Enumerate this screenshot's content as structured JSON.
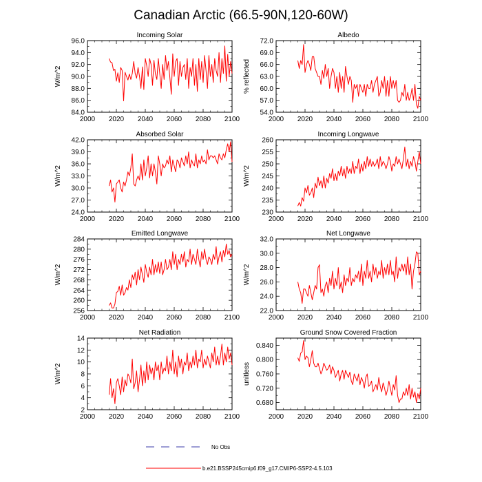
{
  "figure": {
    "title": "Canadian Arctic (66.5-90N,120-60W)"
  },
  "legend": {
    "obs_label": "No Obs",
    "obs_color": "#3a3aa8",
    "model_label": "b.e21.BSSP245cmip6.f09_g17.CMIP6-SSP2-4.5.103",
    "model_color": "#ff0000"
  },
  "chart_data": [
    {
      "type": "line",
      "title": "Incoming Solar",
      "xlabel": "",
      "ylabel": "W/m^2",
      "xlim": [
        2000,
        2100
      ],
      "xticks": [
        2000,
        2020,
        2040,
        2060,
        2080,
        2100
      ],
      "ylim": [
        84,
        96
      ],
      "yticks": [
        "84.0",
        "86.0",
        "88.0",
        "90.0",
        "92.0",
        "94.0",
        "96.0"
      ],
      "series": [
        {
          "name": "b.e21.BSSP245cmip6.f09_g17.CMIP6-SSP2-4.5.103",
          "x_start": 2015,
          "x_step": 1,
          "values": [
            93.0,
            92.4,
            92.3,
            91.0,
            91.2,
            89.2,
            90.6,
            89.0,
            91.5,
            91.0,
            85.9,
            90.7,
            90.0,
            89.4,
            90.4,
            89.5,
            90.5,
            92.5,
            90.5,
            89.7,
            91.5,
            90.0,
            88.0,
            91.6,
            87.8,
            93.0,
            91.8,
            90.0,
            93.0,
            92.0,
            88.5,
            92.7,
            90.4,
            89.5,
            93.0,
            90.5,
            88.0,
            92.0,
            89.5,
            93.5,
            91.0,
            92.5,
            89.8,
            87.0,
            93.8,
            90.0,
            92.5,
            93.0,
            88.5,
            92.5,
            90.0,
            91.5,
            92.0,
            89.5,
            93.0,
            88.0,
            91.5,
            90.0,
            93.0,
            88.5,
            92.0,
            87.5,
            93.0,
            89.5,
            92.5,
            89.0,
            93.5,
            91.0,
            88.0,
            93.5,
            90.0,
            92.0,
            89.0,
            93.0,
            91.0,
            90.0,
            94.0,
            89.0,
            93.0,
            90.5,
            95.1,
            89.2,
            93.7,
            90.0,
            92.5,
            90.5
          ]
        }
      ]
    },
    {
      "type": "line",
      "title": "Albedo",
      "xlabel": "",
      "ylabel": "% reflected",
      "xlim": [
        2000,
        2100
      ],
      "xticks": [
        2000,
        2020,
        2040,
        2060,
        2080,
        2100
      ],
      "ylim": [
        54,
        72
      ],
      "yticks": [
        "54.0",
        "57.0",
        "60.0",
        "63.0",
        "66.0",
        "69.0",
        "72.0"
      ],
      "series": [
        {
          "name": "b.e21.BSSP245cmip6.f09_g17.CMIP6-SSP2-4.5.103",
          "x_start": 2015,
          "x_step": 1,
          "values": [
            67.0,
            65.0,
            67.0,
            66.0,
            71.0,
            64.0,
            66.0,
            67.0,
            66.0,
            64.5,
            68.0,
            68.0,
            65.0,
            64.0,
            63.0,
            63.0,
            61.0,
            64.5,
            62.5,
            66.0,
            63.0,
            65.0,
            60.0,
            63.0,
            65.0,
            64.0,
            60.0,
            63.0,
            59.0,
            64.0,
            60.0,
            63.0,
            59.0,
            65.5,
            63.0,
            61.0,
            63.0,
            62.0,
            56.5,
            61.0,
            60.0,
            61.0,
            58.0,
            61.0,
            60.0,
            59.0,
            61.0,
            58.0,
            61.0,
            60.0,
            60.0,
            62.0,
            59.0,
            61.0,
            62.0,
            63.0,
            58.0,
            59.0,
            62.0,
            60.0,
            63.0,
            58.0,
            62.0,
            58.0,
            63.0,
            60.0,
            62.0,
            60.0,
            62.0,
            57.0,
            56.5,
            57.0,
            59.0,
            58.0,
            61.0,
            57.0,
            59.0,
            57.0,
            58.0,
            60.0,
            57.0,
            61.0,
            56.0,
            55.0,
            58.0,
            57.0
          ]
        }
      ]
    },
    {
      "type": "line",
      "title": "Absorbed Solar",
      "xlabel": "",
      "ylabel": "W/m^2",
      "xlim": [
        2000,
        2100
      ],
      "xticks": [
        2000,
        2020,
        2040,
        2060,
        2080,
        2100
      ],
      "ylim": [
        24,
        42
      ],
      "yticks": [
        "24.0",
        "27.0",
        "30.0",
        "33.0",
        "36.0",
        "39.0",
        "42.0"
      ],
      "series": [
        {
          "name": "b.e21.BSSP245cmip6.f09_g17.CMIP6-SSP2-4.5.103",
          "x_start": 2015,
          "x_step": 1,
          "values": [
            30.5,
            32.0,
            29.0,
            30.0,
            26.5,
            31.0,
            31.5,
            32.0,
            30.0,
            29.0,
            31.5,
            30.5,
            32.0,
            34.0,
            33.0,
            35.0,
            38.5,
            31.0,
            30.5,
            32.0,
            33.0,
            32.0,
            36.0,
            32.0,
            37.0,
            33.0,
            35.0,
            38.0,
            32.5,
            36.0,
            33.0,
            36.0,
            34.0,
            31.0,
            38.0,
            36.0,
            33.0,
            36.0,
            35.0,
            35.5,
            37.0,
            36.0,
            38.0,
            34.0,
            37.0,
            35.5,
            34.0,
            37.0,
            36.5,
            35.0,
            37.5,
            36.5,
            35.5,
            38.0,
            36.0,
            39.0,
            35.0,
            37.0,
            36.0,
            35.5,
            38.5,
            35.0,
            37.0,
            36.0,
            38.0,
            36.5,
            37.0,
            36.0,
            39.5,
            37.0,
            38.0,
            38.0,
            37.5,
            38.0,
            37.0,
            36.0,
            38.5,
            37.5,
            37.0,
            38.5,
            37.5,
            39.5,
            41.0,
            39.0,
            41.5,
            36.5
          ]
        }
      ]
    },
    {
      "type": "line",
      "title": "Incoming Longwave",
      "xlabel": "",
      "ylabel": "W/m^2",
      "xlim": [
        2000,
        2100
      ],
      "xticks": [
        2000,
        2020,
        2040,
        2060,
        2080,
        2100
      ],
      "ylim": [
        230,
        260
      ],
      "yticks": [
        "230",
        "235",
        "240",
        "245",
        "250",
        "255",
        "260"
      ],
      "series": [
        {
          "name": "b.e21.BSSP245cmip6.f09_g17.CMIP6-SSP2-4.5.103",
          "x_start": 2015,
          "x_step": 1,
          "values": [
            232.5,
            234.0,
            232.5,
            236.0,
            234.5,
            240.0,
            238.0,
            241.0,
            237.0,
            238.0,
            240.0,
            236.0,
            242.0,
            240.0,
            244.5,
            241.0,
            243.0,
            240.0,
            245.0,
            240.0,
            244.0,
            242.0,
            246.0,
            244.0,
            248.0,
            243.0,
            246.0,
            243.0,
            247.0,
            245.0,
            249.0,
            245.0,
            248.0,
            244.0,
            249.0,
            246.0,
            248.0,
            246.0,
            251.0,
            246.0,
            249.0,
            248.0,
            252.0,
            246.0,
            250.0,
            247.0,
            251.0,
            248.0,
            253.0,
            249.0,
            252.0,
            249.0,
            251.0,
            249.0,
            250.0,
            252.0,
            248.0,
            253.0,
            249.0,
            251.0,
            250.0,
            248.0,
            250.0,
            253.0,
            251.0,
            247.0,
            250.0,
            249.0,
            253.0,
            250.0,
            252.0,
            250.0,
            248.0,
            252.0,
            257.0,
            249.0,
            252.0,
            248.0,
            251.0,
            249.0,
            253.0,
            251.0,
            247.0,
            251.0,
            255.0,
            250.0
          ]
        }
      ]
    },
    {
      "type": "line",
      "title": "Emitted Longwave",
      "xlabel": "",
      "ylabel": "W/m^2",
      "xlim": [
        2000,
        2100
      ],
      "xticks": [
        2000,
        2020,
        2040,
        2060,
        2080,
        2100
      ],
      "ylim": [
        256,
        284
      ],
      "yticks": [
        "256",
        "260",
        "264",
        "268",
        "272",
        "276",
        "280",
        "284"
      ],
      "series": [
        {
          "name": "b.e21.BSSP245cmip6.f09_g17.CMIP6-SSP2-4.5.103",
          "x_start": 2015,
          "x_step": 1,
          "values": [
            258.0,
            259.0,
            257.0,
            257.0,
            258.5,
            263.0,
            263.5,
            265.5,
            262.0,
            266.0,
            262.0,
            263.0,
            265.0,
            264.0,
            268.0,
            265.0,
            270.0,
            268.0,
            271.0,
            266.0,
            272.0,
            268.0,
            273.0,
            270.0,
            267.0,
            274.0,
            271.0,
            269.0,
            273.0,
            270.0,
            276.0,
            270.0,
            274.0,
            271.0,
            275.0,
            270.5,
            275.0,
            270.0,
            272.0,
            276.0,
            272.0,
            273.0,
            276.0,
            272.0,
            279.0,
            274.0,
            278.0,
            272.0,
            276.0,
            274.0,
            278.0,
            275.0,
            279.0,
            273.0,
            276.0,
            275.0,
            280.0,
            274.0,
            278.0,
            276.0,
            274.0,
            280.0,
            276.0,
            273.0,
            279.0,
            276.0,
            280.0,
            276.0,
            274.0,
            277.0,
            276.0,
            274.0,
            278.0,
            276.0,
            281.0,
            274.0,
            277.0,
            279.0,
            275.0,
            279.5,
            277.0,
            282.0,
            278.0,
            279.5,
            277.0,
            278.0
          ]
        }
      ]
    },
    {
      "type": "line",
      "title": "Net Longwave",
      "xlabel": "",
      "ylabel": "W/m^2",
      "xlim": [
        2000,
        2100
      ],
      "xticks": [
        2000,
        2020,
        2040,
        2060,
        2080,
        2100
      ],
      "ylim": [
        22,
        32
      ],
      "yticks": [
        "22.0",
        "24.0",
        "26.0",
        "28.0",
        "30.0",
        "32.0"
      ],
      "series": [
        {
          "name": "b.e21.BSSP245cmip6.f09_g17.CMIP6-SSP2-4.5.103",
          "x_start": 2015,
          "x_step": 1,
          "values": [
            26.0,
            25.0,
            24.5,
            23.0,
            25.0,
            25.0,
            24.5,
            24.0,
            25.5,
            24.5,
            23.5,
            24.5,
            25.5,
            25.0,
            28.0,
            28.4,
            24.5,
            25.0,
            24.0,
            25.5,
            26.0,
            24.5,
            26.5,
            25.5,
            27.5,
            25.0,
            26.5,
            25.5,
            28.0,
            25.0,
            26.0,
            24.5,
            27.0,
            25.5,
            26.5,
            26.0,
            28.0,
            25.5,
            26.5,
            26.0,
            27.0,
            26.5,
            27.5,
            26.0,
            28.5,
            25.5,
            27.5,
            26.5,
            29.0,
            26.5,
            27.5,
            26.0,
            28.5,
            27.0,
            28.0,
            26.5,
            27.5,
            27.0,
            29.0,
            26.5,
            28.0,
            27.0,
            28.5,
            27.0,
            29.0,
            27.0,
            27.5,
            26.0,
            29.5,
            26.5,
            28.0,
            27.5,
            28.5,
            27.5,
            28.5,
            27.0,
            29.5,
            27.0,
            28.5,
            25.0,
            27.5,
            28.5,
            30.2,
            30.0,
            27.0,
            27.5
          ]
        }
      ]
    },
    {
      "type": "line",
      "title": "Net Radiation",
      "xlabel": "",
      "ylabel": "W/m^2",
      "xlim": [
        2000,
        2100
      ],
      "xticks": [
        2000,
        2020,
        2040,
        2060,
        2080,
        2100
      ],
      "ylim": [
        2,
        14
      ],
      "yticks": [
        "2",
        "4",
        "6",
        "8",
        "10",
        "12",
        "14"
      ],
      "series": [
        {
          "name": "b.e21.BSSP245cmip6.f09_g17.CMIP6-SSP2-4.5.103",
          "x_start": 2015,
          "x_step": 1,
          "values": [
            4.5,
            7.2,
            4.0,
            5.5,
            3.0,
            6.5,
            7.2,
            6.0,
            4.5,
            7.5,
            5.0,
            7.0,
            6.0,
            8.0,
            7.5,
            6.5,
            10.5,
            5.5,
            6.5,
            8.5,
            5.0,
            7.0,
            9.5,
            6.0,
            8.5,
            6.5,
            10.0,
            7.0,
            9.5,
            8.0,
            9.0,
            7.0,
            10.0,
            8.5,
            9.5,
            7.0,
            10.0,
            8.0,
            9.0,
            8.5,
            11.0,
            8.0,
            10.0,
            8.5,
            12.0,
            8.0,
            10.0,
            7.5,
            11.0,
            9.0,
            10.5,
            8.0,
            10.0,
            9.5,
            11.5,
            8.5,
            10.0,
            9.0,
            11.0,
            9.5,
            12.0,
            9.0,
            10.5,
            10.0,
            12.0,
            9.0,
            10.5,
            9.5,
            11.0,
            10.0,
            9.0,
            11.5,
            10.0,
            12.5,
            9.5,
            11.0,
            9.5,
            11.0,
            13.0,
            9.5,
            11.5,
            10.0,
            12.5,
            10.5,
            11.5,
            9.5
          ]
        }
      ]
    },
    {
      "type": "line",
      "title": "Ground Snow Covered Fraction",
      "xlabel": "",
      "ylabel": "unitless",
      "xlim": [
        2000,
        2100
      ],
      "xticks": [
        2000,
        2020,
        2040,
        2060,
        2080,
        2100
      ],
      "ylim": [
        0.66,
        0.86
      ],
      "yticks": [
        "0.680",
        "0.720",
        "0.760",
        "0.800",
        "0.840"
      ],
      "series": [
        {
          "name": "b.e21.BSSP245cmip6.f09_g17.CMIP6-SSP2-4.5.103",
          "x_start": 2015,
          "x_step": 1,
          "values": [
            0.805,
            0.795,
            0.818,
            0.822,
            0.853,
            0.8,
            0.81,
            0.805,
            0.78,
            0.8,
            0.825,
            0.79,
            0.78,
            0.78,
            0.79,
            0.775,
            0.76,
            0.77,
            0.79,
            0.78,
            0.77,
            0.775,
            0.785,
            0.76,
            0.78,
            0.77,
            0.75,
            0.76,
            0.77,
            0.74,
            0.76,
            0.77,
            0.745,
            0.77,
            0.76,
            0.75,
            0.765,
            0.74,
            0.73,
            0.76,
            0.75,
            0.74,
            0.76,
            0.73,
            0.75,
            0.74,
            0.72,
            0.75,
            0.76,
            0.725,
            0.73,
            0.74,
            0.71,
            0.72,
            0.73,
            0.715,
            0.75,
            0.725,
            0.71,
            0.735,
            0.72,
            0.7,
            0.715,
            0.74,
            0.72,
            0.7,
            0.73,
            0.715,
            0.755,
            0.7,
            0.68,
            0.69,
            0.69,
            0.71,
            0.7,
            0.72,
            0.7,
            0.73,
            0.69,
            0.72,
            0.695,
            0.71,
            0.68,
            0.705,
            0.69,
            0.72
          ]
        }
      ]
    }
  ]
}
